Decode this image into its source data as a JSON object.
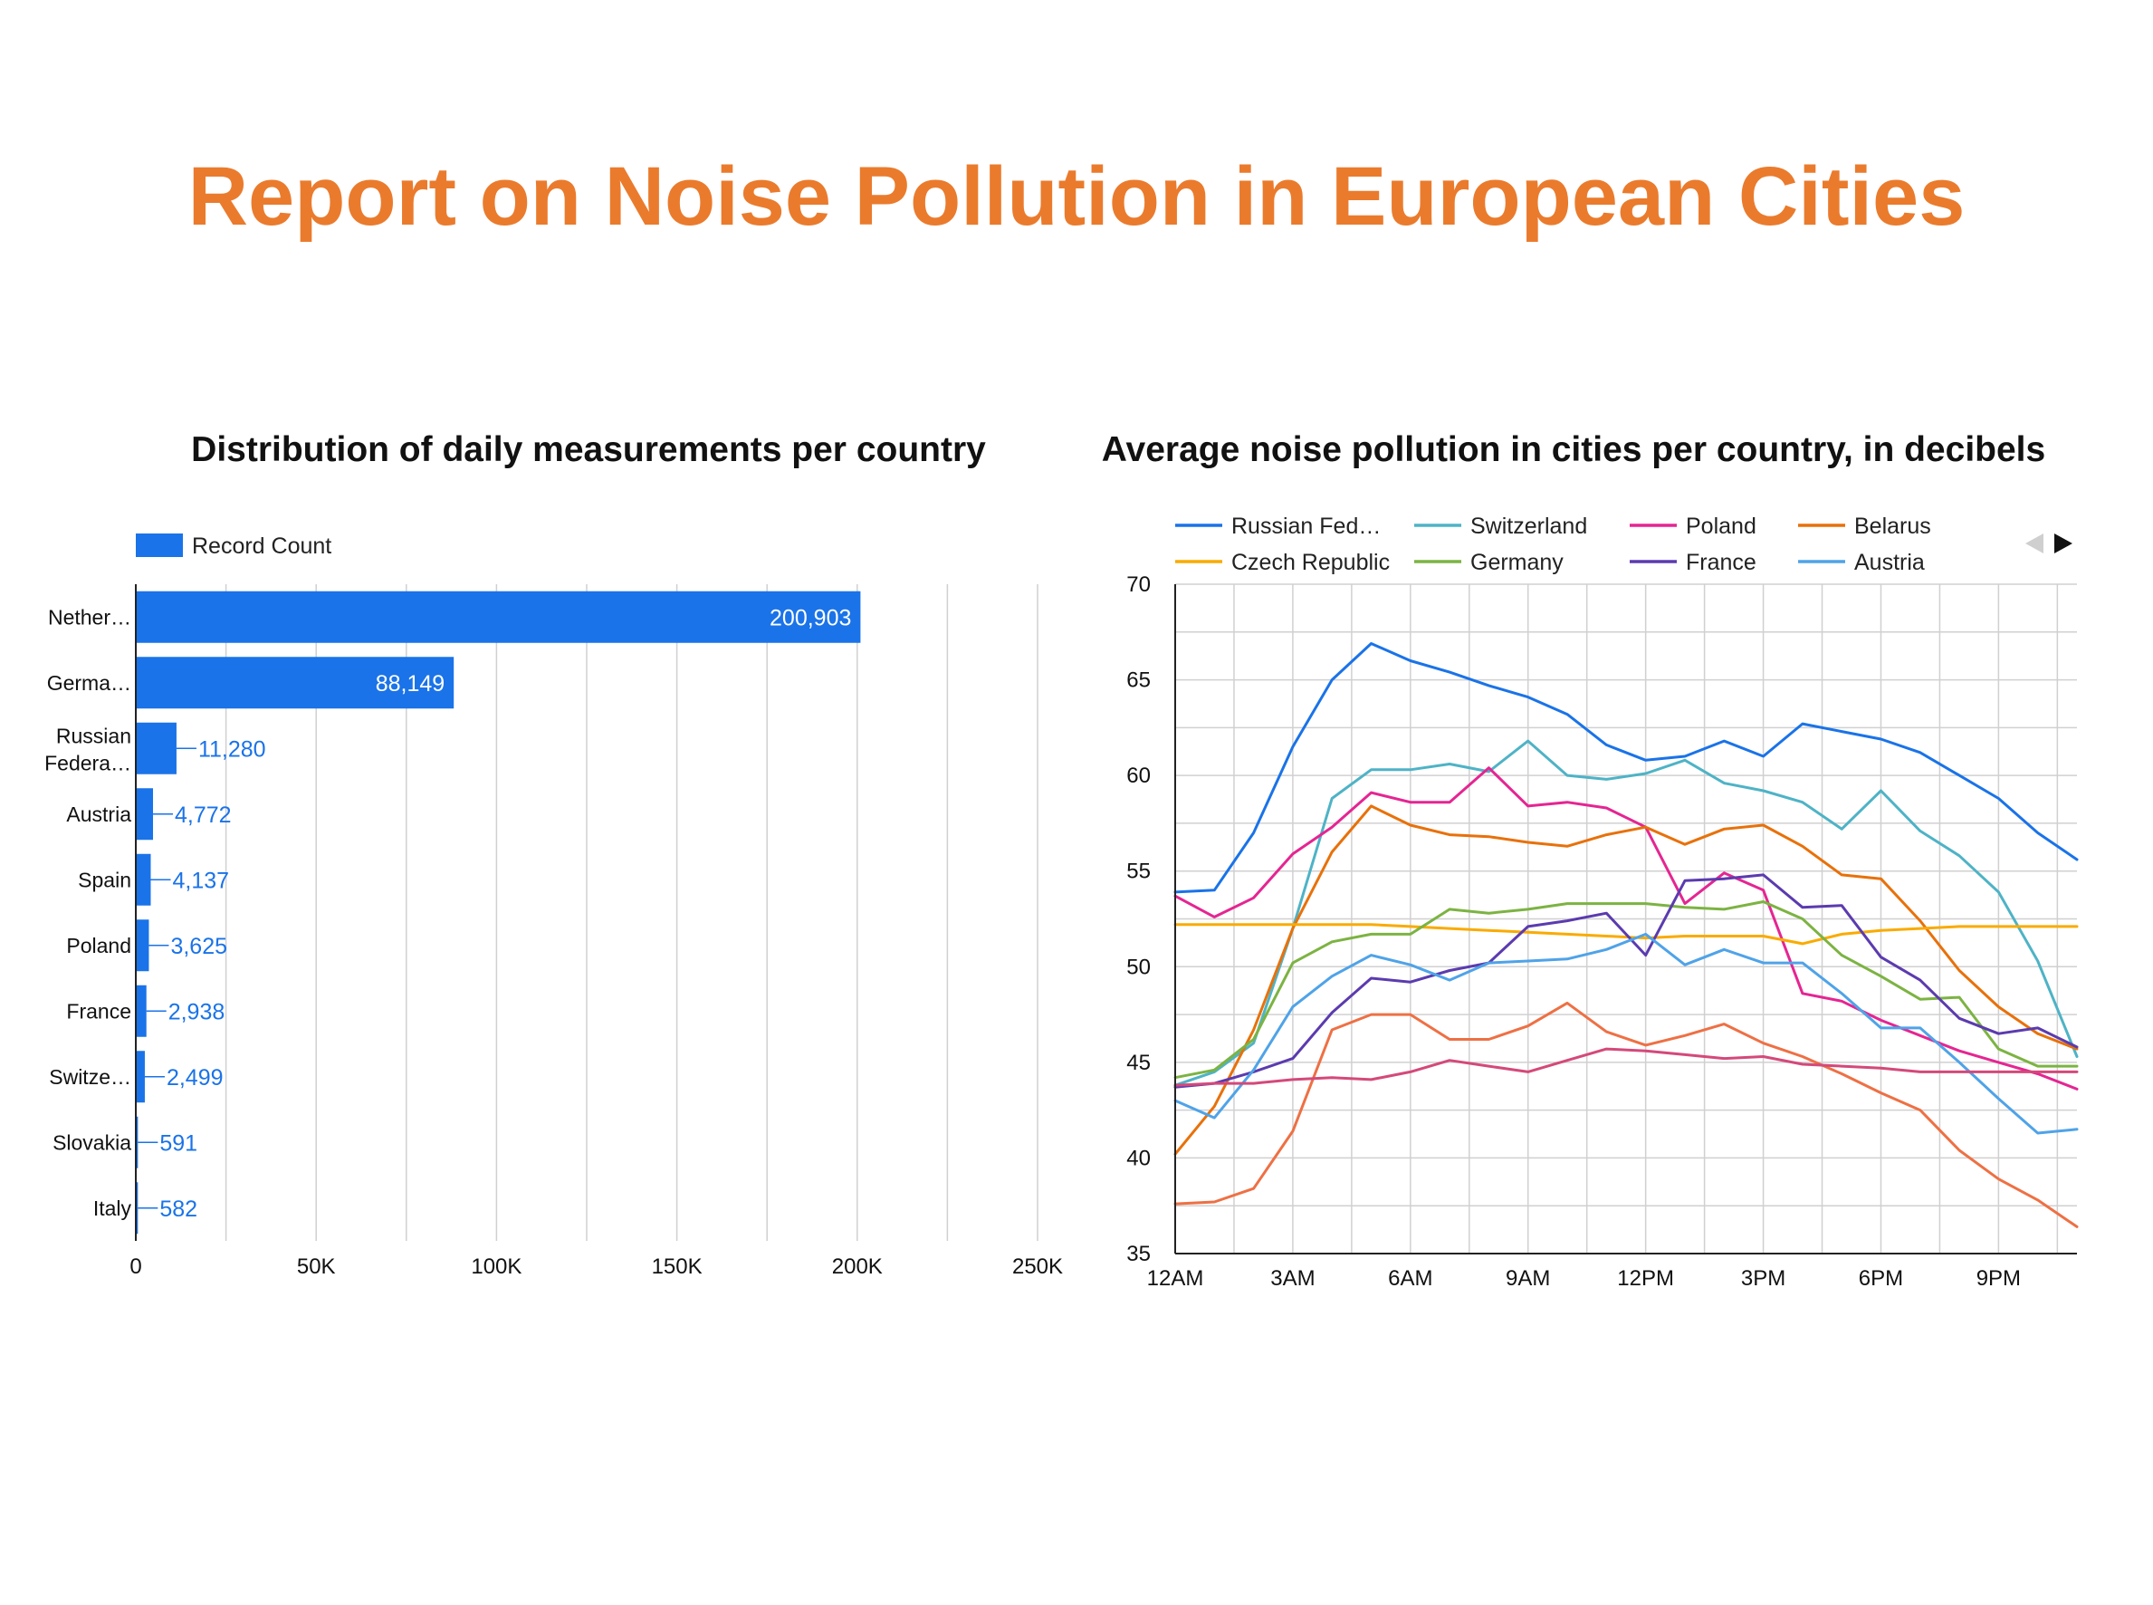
{
  "report": {
    "title": "Report on Noise Pollution in European Cities"
  },
  "colors": {
    "title": "#EA7B2D",
    "bar": "#1A73E8"
  },
  "chart_data": [
    {
      "type": "bar",
      "orientation": "horizontal",
      "title": "Distribution of daily measurements per country",
      "legend": [
        "Record Count"
      ],
      "legend_position": "top-left",
      "grid": true,
      "categories": [
        "Nether…",
        "Germa…",
        "Russian Federa…",
        "Austria",
        "Spain",
        "Poland",
        "France",
        "Switze…",
        "Slovakia",
        "Italy"
      ],
      "series": [
        {
          "name": "Record Count",
          "values": [
            200903,
            88149,
            11280,
            4772,
            4137,
            3625,
            2938,
            2499,
            591,
            582
          ],
          "color": "#1A73E8"
        }
      ],
      "value_labels": [
        "200,903",
        "88,149",
        "11,280",
        "4,772",
        "4,137",
        "3,625",
        "2,938",
        "2,499",
        "591",
        "582"
      ],
      "xlim": [
        0,
        250000
      ],
      "xticks": [
        0,
        50000,
        100000,
        150000,
        200000,
        250000
      ],
      "xtick_labels": [
        "0",
        "50K",
        "100K",
        "150K",
        "200K",
        "250K"
      ]
    },
    {
      "type": "line",
      "title": "Average noise pollution in cities per country, in decibels",
      "legend_position": "top",
      "grid": true,
      "x": [
        0,
        1,
        2,
        3,
        4,
        5,
        6,
        7,
        8,
        9,
        10,
        11,
        12,
        13,
        14,
        15,
        16,
        17,
        18,
        19,
        20,
        21,
        22,
        23
      ],
      "xticks": [
        0,
        3,
        6,
        9,
        12,
        15,
        18,
        21
      ],
      "xtick_labels": [
        "12AM",
        "3AM",
        "6AM",
        "9AM",
        "12PM",
        "3PM",
        "6PM",
        "9PM"
      ],
      "ylim": [
        35,
        70
      ],
      "yticks": [
        35,
        40,
        45,
        50,
        55,
        60,
        65,
        70
      ],
      "ytick_labels": [
        "35",
        "40",
        "45",
        "50",
        "55",
        "60",
        "65",
        "70"
      ],
      "series": [
        {
          "name": "Russian Fed…",
          "color": "#1A73E8",
          "values": [
            53.9,
            54.0,
            57.0,
            61.5,
            65.0,
            66.9,
            66.0,
            65.4,
            64.7,
            64.1,
            63.2,
            61.6,
            60.8,
            61.0,
            61.8,
            61.0,
            62.7,
            62.3,
            61.9,
            61.2,
            60.0,
            58.8,
            57.0,
            55.6
          ]
        },
        {
          "name": "Switzerland",
          "color": "#4EB3C6",
          "values": [
            43.8,
            44.5,
            46.0,
            52.0,
            58.8,
            60.3,
            60.3,
            60.6,
            60.2,
            61.8,
            60.0,
            59.8,
            60.1,
            60.8,
            59.6,
            59.2,
            58.6,
            57.2,
            59.2,
            57.1,
            55.8,
            53.9,
            50.3,
            45.3
          ]
        },
        {
          "name": "Poland",
          "color": "#E52592",
          "values": [
            53.7,
            52.6,
            53.6,
            55.9,
            57.3,
            59.1,
            58.6,
            58.6,
            60.4,
            58.4,
            58.6,
            58.3,
            57.3,
            53.3,
            54.9,
            54.0,
            48.6,
            48.2,
            47.2,
            46.4,
            45.6,
            45.0,
            44.4,
            43.6
          ]
        },
        {
          "name": "Belarus",
          "color": "#E8710A",
          "values": [
            40.2,
            42.7,
            46.7,
            52.0,
            56.0,
            58.4,
            57.4,
            56.9,
            56.8,
            56.5,
            56.3,
            56.9,
            57.3,
            56.4,
            57.2,
            57.4,
            56.3,
            54.8,
            54.6,
            52.4,
            49.8,
            47.9,
            46.5,
            45.7
          ]
        },
        {
          "name": "Czech Republic",
          "color": "#F9AB00",
          "values": [
            52.2,
            52.2,
            52.2,
            52.2,
            52.2,
            52.2,
            52.1,
            52.0,
            51.9,
            51.8,
            51.7,
            51.6,
            51.5,
            51.6,
            51.6,
            51.6,
            51.2,
            51.7,
            51.9,
            52.0,
            52.1,
            52.1,
            52.1,
            52.1
          ]
        },
        {
          "name": "Germany",
          "color": "#7CB342",
          "values": [
            44.2,
            44.6,
            46.2,
            50.2,
            51.3,
            51.7,
            51.7,
            53.0,
            52.8,
            53.0,
            53.3,
            53.3,
            53.3,
            53.1,
            53.0,
            53.4,
            52.5,
            50.6,
            49.5,
            48.3,
            48.4,
            45.7,
            44.8,
            44.8
          ]
        },
        {
          "name": "France",
          "color": "#5B3BAF",
          "values": [
            43.7,
            43.9,
            44.5,
            45.2,
            47.6,
            49.4,
            49.2,
            49.8,
            50.2,
            52.1,
            52.4,
            52.8,
            50.6,
            54.5,
            54.6,
            54.8,
            53.1,
            53.2,
            50.5,
            49.3,
            47.3,
            46.5,
            46.8,
            45.8
          ]
        },
        {
          "name": "Austria",
          "color": "#4FA3E8",
          "values": [
            43.0,
            42.1,
            44.6,
            47.9,
            49.5,
            50.6,
            50.1,
            49.3,
            50.2,
            50.3,
            50.4,
            50.9,
            51.7,
            50.1,
            50.9,
            50.2,
            50.2,
            48.6,
            46.8,
            46.8,
            45.0,
            43.1,
            41.3,
            41.5
          ]
        },
        {
          "name": "",
          "color": "#EE7044",
          "values": [
            37.6,
            37.7,
            38.4,
            41.4,
            46.7,
            47.5,
            47.5,
            46.2,
            46.2,
            46.9,
            48.1,
            46.6,
            45.9,
            46.4,
            47.0,
            46.0,
            45.3,
            44.4,
            43.4,
            42.5,
            40.4,
            38.9,
            37.8,
            36.4
          ]
        },
        {
          "name": "",
          "color": "#D4497A",
          "values": [
            43.8,
            43.9,
            43.9,
            44.1,
            44.2,
            44.1,
            44.5,
            45.1,
            44.8,
            44.5,
            45.1,
            45.7,
            45.6,
            45.4,
            45.2,
            45.3,
            44.9,
            44.8,
            44.7,
            44.5,
            44.5,
            44.5,
            44.5,
            44.5
          ]
        }
      ]
    }
  ]
}
